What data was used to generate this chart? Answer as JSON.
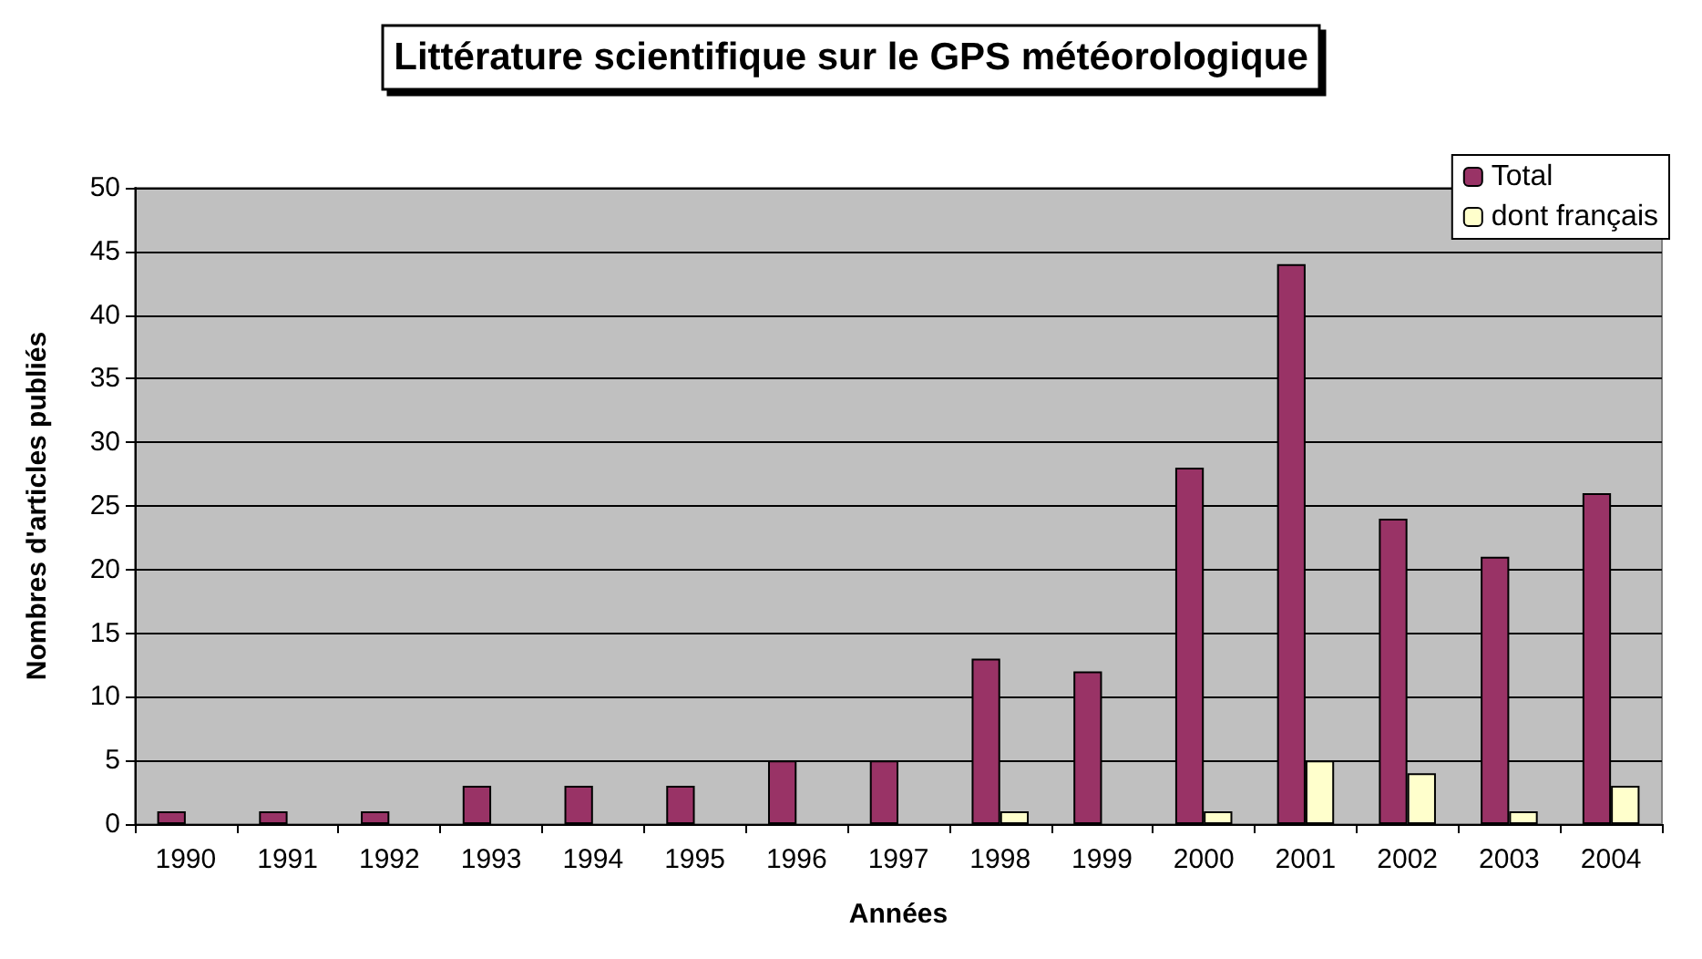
{
  "chart_data": {
    "type": "bar",
    "title": "Littérature scientifique sur le GPS météorologique",
    "xlabel": "Années",
    "ylabel": "Nombres d'articles publiés",
    "categories": [
      "1990",
      "1991",
      "1992",
      "1993",
      "1994",
      "1995",
      "1996",
      "1997",
      "1998",
      "1999",
      "2000",
      "2001",
      "2002",
      "2003",
      "2004"
    ],
    "series": [
      {
        "name": "Total",
        "color": "#993366",
        "values": [
          1,
          1,
          1,
          3,
          3,
          3,
          5,
          5,
          13,
          12,
          28,
          44,
          24,
          21,
          26
        ]
      },
      {
        "name": "dont français",
        "color": "#ffffcc",
        "values": [
          null,
          null,
          null,
          null,
          null,
          null,
          null,
          null,
          1,
          null,
          1,
          5,
          4,
          1,
          3
        ]
      }
    ],
    "ylim": [
      0,
      50
    ],
    "yticks": [
      0,
      5,
      10,
      15,
      20,
      25,
      30,
      35,
      40,
      45,
      50
    ],
    "grid": "y",
    "legend": "top right"
  }
}
